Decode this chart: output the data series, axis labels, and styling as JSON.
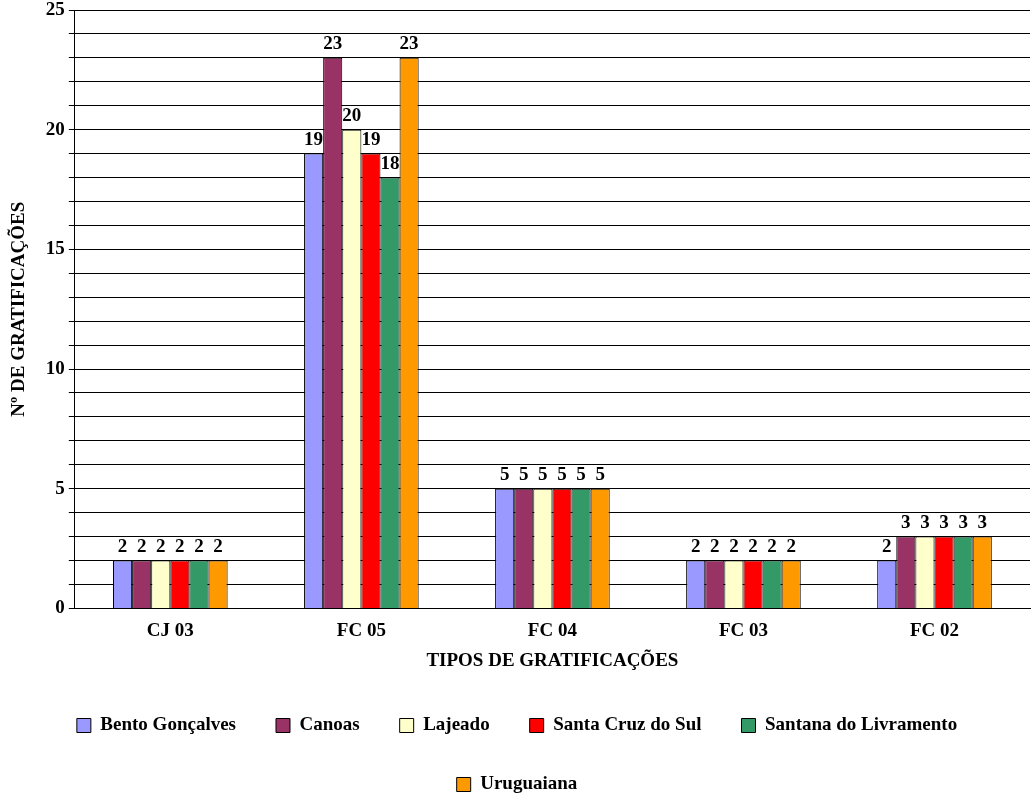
{
  "chart_data": {
    "type": "bar",
    "xlabel": "TIPOS DE GRATIFICAÇÕES",
    "ylabel": "Nº DE GRATIFICAÇÕES",
    "categories": [
      "CJ 03",
      "FC 05",
      "FC 04",
      "FC 03",
      "FC 02"
    ],
    "series": [
      {
        "name": "Bento Gonçalves",
        "color": "#9999ff",
        "values": [
          2,
          19,
          5,
          2,
          2
        ]
      },
      {
        "name": "Canoas",
        "color": "#993366",
        "values": [
          2,
          23,
          5,
          2,
          3
        ]
      },
      {
        "name": "Lajeado",
        "color": "#ffffcc",
        "values": [
          2,
          20,
          5,
          2,
          3
        ]
      },
      {
        "name": "Santa Cruz do Sul",
        "color": "#ff0000",
        "values": [
          2,
          19,
          5,
          2,
          3
        ]
      },
      {
        "name": "Santana do Livramento",
        "color": "#339966",
        "values": [
          2,
          18,
          5,
          2,
          3
        ]
      },
      {
        "name": "Uruguaiana",
        "color": "#ff9900",
        "values": [
          2,
          23,
          5,
          2,
          3
        ]
      }
    ],
    "ylim": [
      0,
      25
    ],
    "yticks": [
      0,
      {
        "value": 1,
        "label": null
      },
      {
        "value": 2,
        "label": null
      },
      {
        "value": 3,
        "label": null
      },
      {
        "value": 4,
        "label": null
      },
      5,
      {
        "value": 6,
        "label": null
      },
      {
        "value": 7,
        "label": null
      },
      {
        "value": 8,
        "label": null
      },
      {
        "value": 9,
        "label": null
      },
      10,
      {
        "value": 11,
        "label": null
      },
      {
        "value": 12,
        "label": null
      },
      {
        "value": 13,
        "label": null
      },
      {
        "value": 14,
        "label": null
      },
      15,
      {
        "value": 16,
        "label": null
      },
      {
        "value": 17,
        "label": null
      },
      {
        "value": 18,
        "label": null
      },
      {
        "value": 19,
        "label": null
      },
      20,
      {
        "value": 21,
        "label": null
      },
      {
        "value": 22,
        "label": null
      },
      {
        "value": 23,
        "label": null
      },
      {
        "value": 24,
        "label": null
      },
      25
    ],
    "grid": "y",
    "legend": "bottom",
    "data_labels": true
  }
}
